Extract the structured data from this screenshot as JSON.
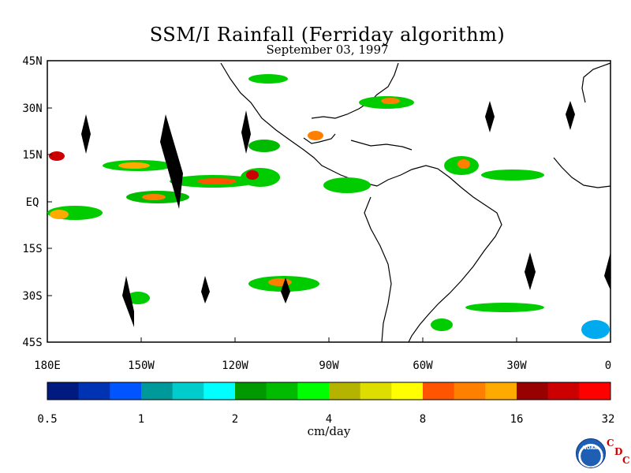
{
  "title": "SSM/I Rainfall (Ferriday algorithm)",
  "subtitle": "September 03, 1997",
  "lat_labels": [
    "45N",
    "30N",
    "15N",
    "EQ",
    "15S",
    "30S",
    "45S"
  ],
  "lon_labels": [
    "180E",
    "150W",
    "120W",
    "90W",
    "60W",
    "30W",
    "0"
  ],
  "colorbar": {
    "unit": "cm/day",
    "tick_labels": [
      "0.5",
      "1",
      "2",
      "4",
      "8",
      "16",
      "32"
    ],
    "colors": [
      "#001a80",
      "#0033b3",
      "#0055ff",
      "#00999a",
      "#00cccc",
      "#00ffff",
      "#009900",
      "#00bb00",
      "#00ff00",
      "#b3b300",
      "#dddd00",
      "#ffff00",
      "#ff5500",
      "#ff8000",
      "#ffaa00",
      "#990000",
      "#cc0000",
      "#ff0000"
    ]
  },
  "logo": {
    "noaa": "NOAA",
    "cdc": [
      "C",
      "D",
      "C"
    ]
  }
}
